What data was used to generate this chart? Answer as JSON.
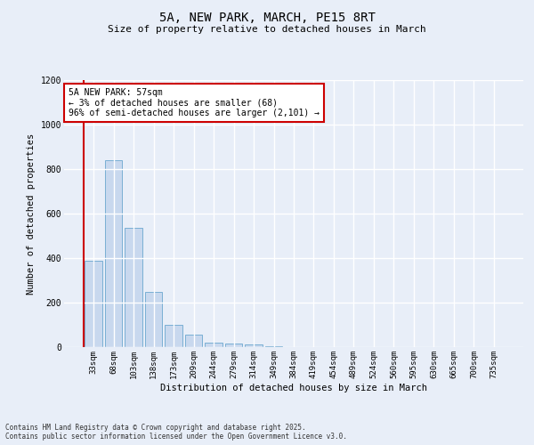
{
  "title_line1": "5A, NEW PARK, MARCH, PE15 8RT",
  "title_line2": "Size of property relative to detached houses in March",
  "xlabel": "Distribution of detached houses by size in March",
  "ylabel": "Number of detached properties",
  "categories": [
    "33sqm",
    "68sqm",
    "103sqm",
    "138sqm",
    "173sqm",
    "209sqm",
    "244sqm",
    "279sqm",
    "314sqm",
    "349sqm",
    "384sqm",
    "419sqm",
    "454sqm",
    "489sqm",
    "524sqm",
    "560sqm",
    "595sqm",
    "630sqm",
    "665sqm",
    "700sqm",
    "735sqm"
  ],
  "values": [
    390,
    840,
    535,
    248,
    102,
    55,
    20,
    15,
    12,
    5,
    0,
    0,
    0,
    0,
    0,
    0,
    0,
    0,
    0,
    0,
    0
  ],
  "bar_color": "#c8d8ee",
  "bar_edge_color": "#7aafd4",
  "marker_color": "#cc0000",
  "ylim": [
    0,
    1200
  ],
  "yticks": [
    0,
    200,
    400,
    600,
    800,
    1000,
    1200
  ],
  "annotation_title": "5A NEW PARK: 57sqm",
  "annotation_line2": "← 3% of detached houses are smaller (68)",
  "annotation_line3": "96% of semi-detached houses are larger (2,101) →",
  "annotation_box_color": "#ffffff",
  "annotation_box_edge": "#cc0000",
  "background_color": "#e8eef8",
  "grid_color": "#ffffff",
  "footer_line1": "Contains HM Land Registry data © Crown copyright and database right 2025.",
  "footer_line2": "Contains public sector information licensed under the Open Government Licence v3.0."
}
